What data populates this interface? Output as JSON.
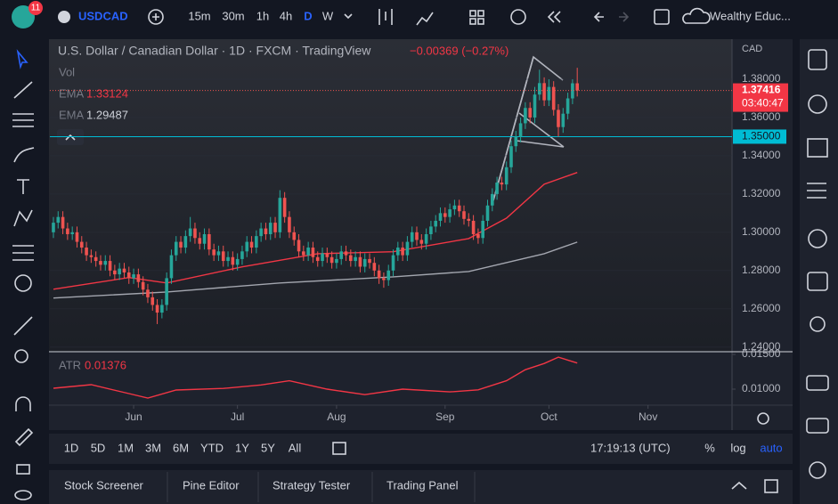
{
  "toolbar": {
    "badge": "11",
    "symbol": "USDCAD",
    "intervals": [
      "15m",
      "30m",
      "1h",
      "4h",
      "D",
      "W"
    ],
    "selected_interval": 4,
    "account": "Wealthy Educ..."
  },
  "legend": {
    "title": "U.S. Dollar / Canadian Dollar · 1D · FXCM · TradingView",
    "change": "−0.00369 (−0.27%)",
    "vol": "Vol",
    "ema": [
      {
        "name": "EMA",
        "value": "1.33124"
      },
      {
        "name": "EMA",
        "value": "1.29487"
      }
    ],
    "atr_name": "ATR",
    "atr_value": "0.01376"
  },
  "currency": "CAD",
  "chart_data": {
    "type": "candlestick",
    "open": [
      1.3,
      1.305,
      1.308,
      1.302,
      1.299,
      1.3,
      1.295,
      1.292,
      1.288,
      1.287,
      1.285,
      1.283,
      1.285,
      1.28,
      1.278,
      1.281,
      1.279,
      1.276,
      1.278,
      1.274,
      1.27,
      1.266,
      1.262,
      1.258,
      1.262,
      1.276,
      1.288,
      1.295,
      1.292,
      1.298,
      1.302,
      1.297,
      1.294,
      1.299,
      1.291,
      1.288,
      1.29,
      1.285,
      1.287,
      1.283,
      1.286,
      1.29,
      1.295,
      1.292,
      1.298,
      1.302,
      1.299,
      1.305,
      1.3,
      1.318,
      1.308,
      1.3,
      1.296,
      1.29,
      1.288,
      1.292,
      1.287,
      1.285,
      1.289,
      1.287,
      1.284,
      1.286,
      1.29,
      1.288,
      1.285,
      1.287,
      1.282,
      1.286,
      1.284,
      1.28,
      1.276,
      1.275,
      1.28,
      1.288,
      1.292,
      1.288,
      1.295,
      1.3,
      1.296,
      1.294,
      1.299,
      1.303,
      1.306,
      1.31,
      1.308,
      1.312,
      1.314,
      1.311,
      1.307,
      1.306,
      1.299,
      1.297,
      1.306,
      1.314,
      1.32,
      1.326,
      1.325,
      1.334,
      1.345,
      1.35,
      1.357,
      1.365,
      1.36,
      1.372,
      1.378,
      1.369,
      1.376,
      1.364,
      1.355,
      1.362,
      1.37,
      1.3779
    ],
    "high": [
      1.308,
      1.311,
      1.311,
      1.305,
      1.303,
      1.303,
      1.298,
      1.295,
      1.291,
      1.29,
      1.288,
      1.288,
      1.288,
      1.283,
      1.284,
      1.284,
      1.282,
      1.281,
      1.281,
      1.277,
      1.273,
      1.269,
      1.265,
      1.265,
      1.279,
      1.291,
      1.298,
      1.298,
      1.301,
      1.308,
      1.305,
      1.3,
      1.302,
      1.302,
      1.294,
      1.293,
      1.293,
      1.29,
      1.29,
      1.289,
      1.293,
      1.298,
      1.298,
      1.301,
      1.305,
      1.305,
      1.308,
      1.308,
      1.322,
      1.321,
      1.311,
      1.303,
      1.299,
      1.293,
      1.295,
      1.295,
      1.29,
      1.292,
      1.292,
      1.29,
      1.289,
      1.293,
      1.293,
      1.291,
      1.29,
      1.29,
      1.289,
      1.289,
      1.287,
      1.283,
      1.279,
      1.283,
      1.291,
      1.295,
      1.295,
      1.298,
      1.303,
      1.303,
      1.299,
      1.302,
      1.306,
      1.309,
      1.313,
      1.313,
      1.315,
      1.317,
      1.317,
      1.314,
      1.31,
      1.309,
      1.302,
      1.309,
      1.317,
      1.323,
      1.329,
      1.329,
      1.337,
      1.348,
      1.353,
      1.36,
      1.368,
      1.368,
      1.376,
      1.385,
      1.381,
      1.38,
      1.379,
      1.367,
      1.365,
      1.373,
      1.38,
      1.386
    ],
    "low": [
      1.297,
      1.302,
      1.299,
      1.296,
      1.296,
      1.292,
      1.289,
      1.285,
      1.284,
      1.282,
      1.28,
      1.28,
      1.277,
      1.275,
      1.275,
      1.276,
      1.273,
      1.273,
      1.271,
      1.267,
      1.263,
      1.259,
      1.252,
      1.255,
      1.259,
      1.273,
      1.285,
      1.289,
      1.289,
      1.295,
      1.294,
      1.291,
      1.291,
      1.288,
      1.285,
      1.285,
      1.282,
      1.282,
      1.28,
      1.28,
      1.283,
      1.287,
      1.289,
      1.289,
      1.295,
      1.296,
      1.296,
      1.297,
      1.297,
      1.305,
      1.297,
      1.293,
      1.287,
      1.285,
      1.285,
      1.284,
      1.282,
      1.282,
      1.284,
      1.281,
      1.281,
      1.283,
      1.285,
      1.282,
      1.282,
      1.279,
      1.279,
      1.281,
      1.277,
      1.273,
      1.271,
      1.272,
      1.277,
      1.285,
      1.285,
      1.285,
      1.292,
      1.293,
      1.291,
      1.291,
      1.296,
      1.3,
      1.303,
      1.305,
      1.305,
      1.309,
      1.308,
      1.304,
      1.303,
      1.296,
      1.294,
      1.294,
      1.303,
      1.311,
      1.317,
      1.322,
      1.322,
      1.331,
      1.342,
      1.347,
      1.354,
      1.357,
      1.357,
      1.369,
      1.366,
      1.366,
      1.361,
      1.35,
      1.352,
      1.359,
      1.367,
      1.371
    ],
    "close": [
      1.305,
      1.308,
      1.302,
      1.299,
      1.3,
      1.295,
      1.292,
      1.288,
      1.287,
      1.285,
      1.283,
      1.285,
      1.28,
      1.278,
      1.281,
      1.279,
      1.276,
      1.278,
      1.274,
      1.27,
      1.266,
      1.262,
      1.258,
      1.262,
      1.276,
      1.288,
      1.295,
      1.292,
      1.298,
      1.302,
      1.297,
      1.294,
      1.299,
      1.291,
      1.288,
      1.29,
      1.285,
      1.287,
      1.283,
      1.286,
      1.29,
      1.295,
      1.292,
      1.298,
      1.302,
      1.299,
      1.305,
      1.3,
      1.318,
      1.308,
      1.3,
      1.296,
      1.29,
      1.288,
      1.292,
      1.287,
      1.285,
      1.289,
      1.287,
      1.284,
      1.286,
      1.29,
      1.288,
      1.285,
      1.287,
      1.282,
      1.286,
      1.284,
      1.28,
      1.276,
      1.275,
      1.28,
      1.288,
      1.292,
      1.288,
      1.295,
      1.3,
      1.296,
      1.294,
      1.299,
      1.303,
      1.306,
      1.31,
      1.308,
      1.312,
      1.314,
      1.311,
      1.307,
      1.306,
      1.299,
      1.297,
      1.306,
      1.314,
      1.32,
      1.326,
      1.325,
      1.334,
      1.345,
      1.35,
      1.357,
      1.365,
      1.36,
      1.372,
      1.378,
      1.369,
      1.376,
      1.364,
      1.355,
      1.362,
      1.37,
      1.3779,
      1.37416
    ],
    "up_color": "#26a69a",
    "down_color": "#ef5350",
    "xlim": [
      -0.75,
      143.8
    ],
    "xticks": [
      {
        "value": 17,
        "label": "Jun"
      },
      {
        "value": 39,
        "label": "Jul"
      },
      {
        "value": 60,
        "label": "Aug"
      },
      {
        "value": 83,
        "label": "Sep"
      },
      {
        "value": 105,
        "label": "Oct"
      },
      {
        "value": 126,
        "label": "Nov"
      }
    ],
    "ylim": [
      1.238,
      1.4005
    ],
    "yticks": [
      {
        "value": 1.38,
        "label": "1.38000"
      },
      {
        "value": 1.36,
        "label": "1.36000"
      },
      {
        "value": 1.34,
        "label": "1.34000"
      },
      {
        "value": 1.32,
        "label": "1.32000"
      },
      {
        "value": 1.3,
        "label": "1.30000"
      },
      {
        "value": 1.28,
        "label": "1.28000"
      },
      {
        "value": 1.26,
        "label": "1.26000"
      },
      {
        "value": 1.24,
        "label": "1.24000"
      }
    ],
    "price_line": {
      "value": 1.35,
      "label": "1.35000",
      "color": "#00bcd4"
    },
    "last_label": "1.37416",
    "countdown": "03:40:47",
    "ema_lines": [
      {
        "color": "#f23645",
        "x": [
          0,
          16,
          24,
          40,
          56,
          72,
          88,
          96,
          104,
          111
        ],
        "values": [
          1.2702,
          1.2763,
          1.2735,
          1.2819,
          1.2888,
          1.2898,
          1.2967,
          1.3074,
          1.3251,
          1.33124
        ]
      },
      {
        "color": "#a3a6af",
        "x": [
          0,
          24,
          48,
          72,
          88,
          104,
          111
        ],
        "values": [
          1.2656,
          1.2688,
          1.2735,
          1.2767,
          1.2795,
          1.2888,
          1.29487
        ]
      }
    ],
    "atr": {
      "color": "#f23645",
      "x": [
        0,
        8,
        16,
        20,
        26,
        36,
        44,
        50,
        58,
        66,
        74,
        84,
        90,
        96,
        100,
        104,
        107,
        111
      ],
      "values": [
        0.01013,
        0.01064,
        0.00936,
        0.00872,
        0.00987,
        0.0101,
        0.0106,
        0.0112,
        0.01,
        0.0092,
        0.01,
        0.0096,
        0.0099,
        0.0112,
        0.0128,
        0.0137,
        0.0146,
        0.01376
      ],
      "ylim": [
        0.00769,
        0.01526
      ],
      "yticks": [
        {
          "value": 0.015,
          "label": "0.01500"
        },
        {
          "value": 0.01,
          "label": "0.01000"
        }
      ]
    }
  },
  "timeframes": [
    "1D",
    "5D",
    "1M",
    "3M",
    "6M",
    "YTD",
    "1Y",
    "5Y",
    "All"
  ],
  "clock": "17:19:13 (UTC)",
  "scale_buttons": [
    "%",
    "log",
    "auto"
  ],
  "panels": [
    "Stock Screener",
    "Pine Editor",
    "Strategy Tester",
    "Trading Panel"
  ]
}
